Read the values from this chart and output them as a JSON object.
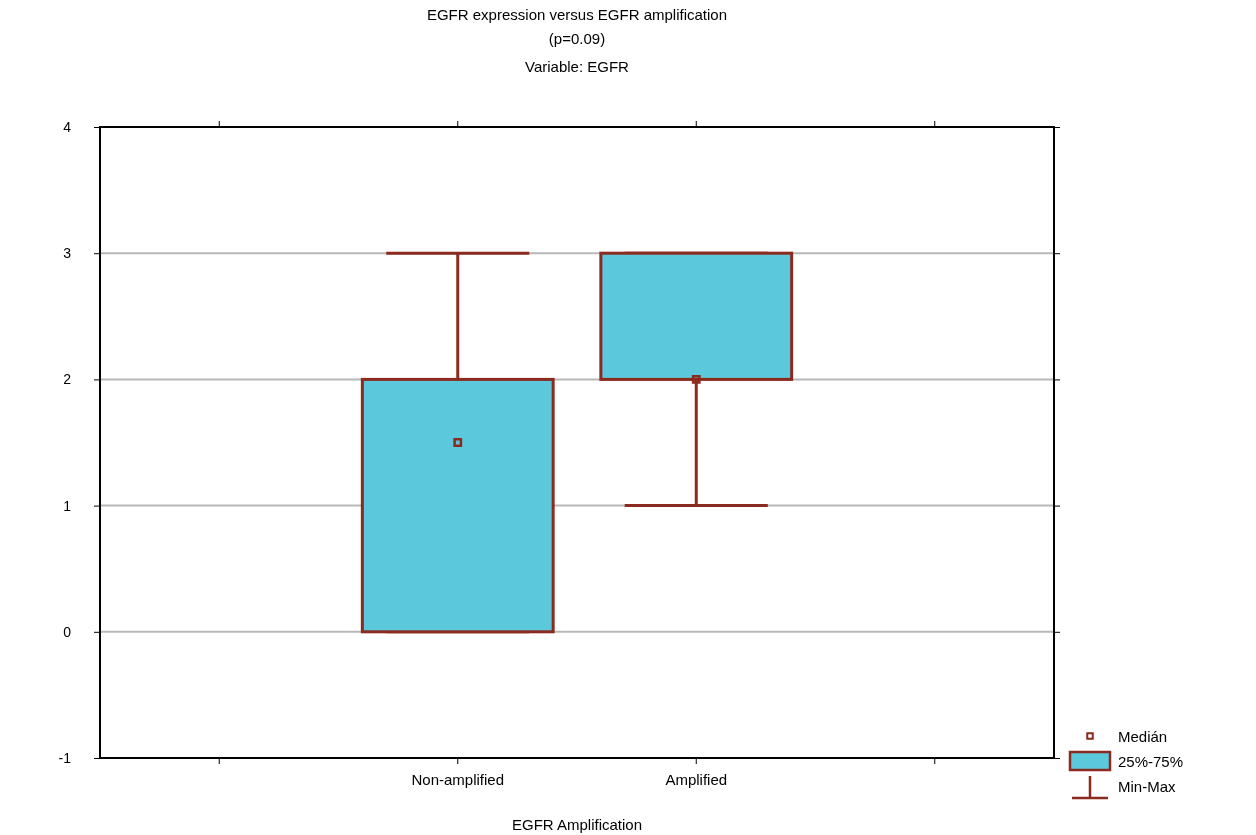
{
  "chart_data": {
    "type": "box",
    "title": "EGFR expression versus EGFR amplification\n(p=0.09)",
    "subtitle": "Variable: EGFR",
    "xlabel": "EGFR Amplification",
    "categories": [
      null,
      "Non-amplified",
      "Amplified",
      null
    ],
    "boxes": [
      null,
      {
        "low": 0,
        "q1": 0,
        "median": 1.5,
        "q3": 2,
        "high": 3
      },
      {
        "low": 1,
        "q1": 2,
        "median": 2,
        "q3": 3,
        "high": 3
      },
      null
    ],
    "color": "#5bc8dc",
    "ylim": [
      -1,
      4
    ],
    "yticks": [
      -1,
      0,
      1,
      2,
      3,
      4
    ],
    "grid": "y",
    "marker": "square",
    "annotations": [
      "Medián",
      "25%-75%",
      "Min-Max"
    ]
  }
}
